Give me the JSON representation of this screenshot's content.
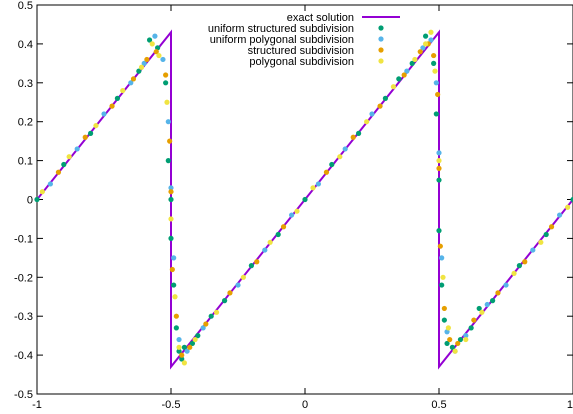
{
  "chart_data": {
    "type": "scatter",
    "title": "",
    "xlabel": "",
    "ylabel": "",
    "xlim": [
      -1,
      1
    ],
    "ylim": [
      -0.5,
      0.5
    ],
    "grid": false,
    "legend_position": "top-right",
    "x_ticks": [
      -1,
      -0.5,
      0,
      0.5,
      1
    ],
    "x_tick_labels": [
      "-1",
      "-0.5",
      "0",
      "0.5",
      "1"
    ],
    "y_ticks": [
      -0.5,
      -0.4,
      -0.3,
      -0.2,
      -0.1,
      0,
      0.1,
      0.2,
      0.3,
      0.4,
      0.5
    ],
    "y_tick_labels": [
      "-0.5",
      "-0.4",
      "-0.3",
      "-0.2",
      "-0.1",
      "0",
      "0.1",
      "0.2",
      "0.3",
      "0.4",
      "0.5"
    ],
    "series": [
      {
        "name": "exact solution",
        "kind": "line",
        "color": "#9400d3",
        "x": [
          -1,
          -0.5,
          -0.5,
          0.5,
          0.5,
          1
        ],
        "y": [
          0,
          0.43,
          -0.43,
          0.43,
          -0.43,
          0
        ]
      },
      {
        "name": "uniform structured subdivision",
        "kind": "points",
        "color": "#009e73",
        "x": [
          -1.0,
          -0.9,
          -0.8,
          -0.7,
          -0.62,
          -0.58,
          -0.55,
          -0.52,
          -0.51,
          -0.5,
          -0.5,
          -0.49,
          -0.48,
          -0.47,
          -0.46,
          -0.45,
          -0.42,
          -0.4,
          -0.35,
          -0.3,
          -0.2,
          -0.1,
          0.0,
          0.1,
          0.2,
          0.3,
          0.35,
          0.4,
          0.45,
          0.48,
          0.49,
          0.5,
          0.5,
          0.51,
          0.52,
          0.53,
          0.55,
          0.58,
          0.62,
          0.65,
          0.7,
          0.8,
          0.9,
          1.0
        ],
        "y": [
          0.0,
          0.09,
          0.17,
          0.26,
          0.33,
          0.41,
          0.39,
          0.3,
          0.1,
          0.0,
          -0.1,
          -0.22,
          -0.33,
          -0.39,
          -0.41,
          -0.38,
          -0.37,
          -0.35,
          -0.3,
          -0.26,
          -0.17,
          -0.09,
          0.0,
          0.09,
          0.17,
          0.26,
          0.31,
          0.35,
          0.42,
          0.35,
          0.22,
          0.05,
          -0.08,
          -0.22,
          -0.31,
          -0.37,
          -0.38,
          -0.36,
          -0.33,
          -0.28,
          -0.26,
          -0.17,
          -0.09,
          0.0
        ]
      },
      {
        "name": "uniform polygonal subdivision",
        "kind": "points",
        "color": "#56b4e9",
        "x": [
          -0.95,
          -0.85,
          -0.75,
          -0.65,
          -0.6,
          -0.56,
          -0.53,
          -0.51,
          -0.5,
          -0.49,
          -0.47,
          -0.44,
          -0.38,
          -0.25,
          -0.15,
          -0.05,
          0.05,
          0.15,
          0.25,
          0.38,
          0.44,
          0.47,
          0.49,
          0.5,
          0.51,
          0.53,
          0.56,
          0.6,
          0.68,
          0.75,
          0.85,
          0.95
        ],
        "y": [
          0.04,
          0.13,
          0.22,
          0.3,
          0.35,
          0.42,
          0.36,
          0.2,
          0.03,
          -0.15,
          -0.36,
          -0.39,
          -0.33,
          -0.22,
          -0.13,
          -0.04,
          0.04,
          0.13,
          0.22,
          0.33,
          0.39,
          0.41,
          0.3,
          0.12,
          -0.15,
          -0.34,
          -0.39,
          -0.35,
          -0.27,
          -0.22,
          -0.13,
          -0.04
        ]
      },
      {
        "name": "structured subdivision",
        "kind": "points",
        "color": "#e69f00",
        "x": [
          -0.92,
          -0.82,
          -0.72,
          -0.64,
          -0.59,
          -0.555,
          -0.52,
          -0.505,
          -0.5,
          -0.495,
          -0.48,
          -0.46,
          -0.43,
          -0.37,
          -0.28,
          -0.18,
          -0.08,
          0.08,
          0.18,
          0.28,
          0.37,
          0.43,
          0.46,
          0.48,
          0.495,
          0.5,
          0.505,
          0.52,
          0.54,
          0.57,
          0.63,
          0.72,
          0.82,
          0.92
        ],
        "y": [
          0.07,
          0.16,
          0.24,
          0.31,
          0.36,
          0.38,
          0.32,
          0.15,
          0.02,
          -0.18,
          -0.3,
          -0.4,
          -0.38,
          -0.32,
          -0.24,
          -0.16,
          -0.07,
          0.07,
          0.16,
          0.24,
          0.32,
          0.38,
          0.4,
          0.37,
          0.27,
          0.08,
          -0.12,
          -0.28,
          -0.36,
          -0.37,
          -0.31,
          -0.24,
          -0.16,
          -0.07
        ]
      },
      {
        "name": "polygonal subdivision",
        "kind": "points",
        "color": "#f0e442",
        "x": [
          -0.98,
          -0.88,
          -0.78,
          -0.68,
          -0.61,
          -0.57,
          -0.545,
          -0.515,
          -0.5,
          -0.485,
          -0.47,
          -0.45,
          -0.41,
          -0.33,
          -0.23,
          -0.13,
          -0.03,
          0.03,
          0.13,
          0.23,
          0.33,
          0.41,
          0.45,
          0.47,
          0.485,
          0.5,
          0.515,
          0.535,
          0.56,
          0.6,
          0.66,
          0.78,
          0.88,
          0.98
        ],
        "y": [
          0.02,
          0.11,
          0.19,
          0.28,
          0.34,
          0.4,
          0.37,
          0.25,
          -0.05,
          -0.25,
          -0.38,
          -0.42,
          -0.36,
          -0.29,
          -0.2,
          -0.11,
          -0.03,
          0.03,
          0.11,
          0.2,
          0.29,
          0.36,
          0.4,
          0.43,
          0.33,
          0.1,
          -0.2,
          -0.33,
          -0.39,
          -0.36,
          -0.29,
          -0.19,
          -0.11,
          -0.02
        ]
      }
    ]
  }
}
